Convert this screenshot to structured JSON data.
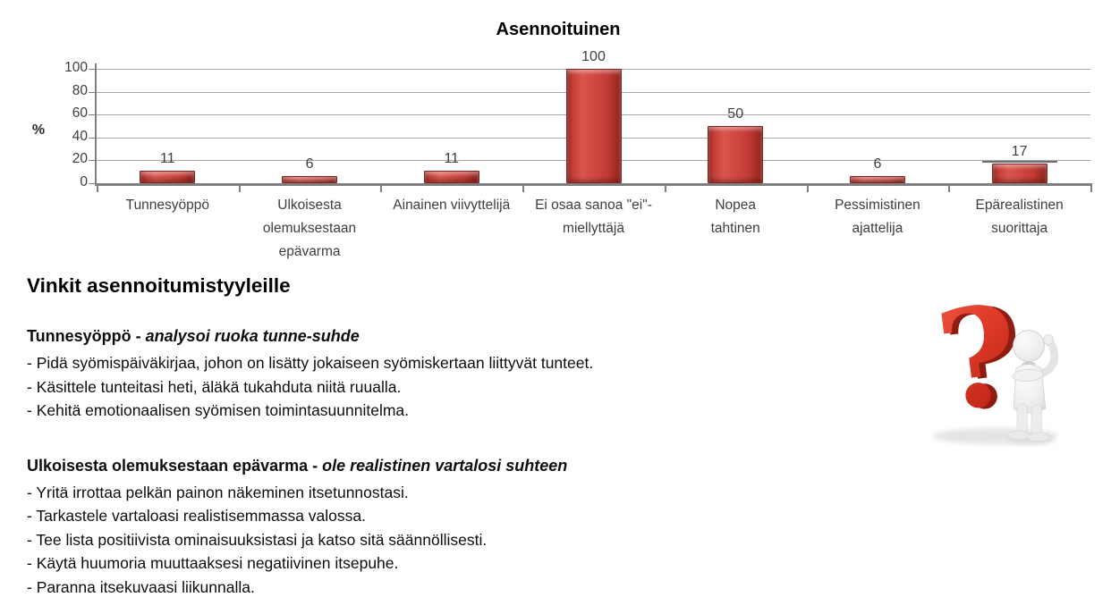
{
  "chart_data": {
    "type": "bar",
    "title": "Asennoituinen",
    "ylabel": "%",
    "xlabel": "",
    "ylim": [
      0,
      100
    ],
    "yticks": [
      0,
      20,
      40,
      60,
      80,
      100
    ],
    "grid": true,
    "legend": "none",
    "bar_color": "#cc4440",
    "bar_edge_color": "#8a211c",
    "gridline_color": "#a8a8a8",
    "axis_color": "#7f7f7f",
    "label_color": "#3d3d42",
    "categories": [
      "Tunnesyöppö",
      "Ulkoisesta olemuksestaan epävarma",
      "Ainainen viivyttelijä",
      "Ei osaa sanoa \"ei\"-miellyttäjä",
      "Nopea tahtinen",
      "Pessimistinen ajattelija",
      "Epärealistinen suorittaja"
    ],
    "category_lines": [
      [
        "Tunnesyöppö"
      ],
      [
        "Ulkoisesta",
        "olemuksestaan",
        "epävarma"
      ],
      [
        "Ainainen viivyttelijä"
      ],
      [
        "Ei osaa sanoa \"ei\"-",
        "miellyttäjä"
      ],
      [
        "Nopea",
        "tahtinen"
      ],
      [
        "Pessimistinen",
        "ajattelija"
      ],
      [
        "Epärealistinen",
        "suorittaja"
      ]
    ],
    "values": [
      11,
      6,
      11,
      100,
      50,
      6,
      17
    ],
    "data_labels": [
      "11",
      "6",
      "11",
      "100",
      "50",
      "6",
      "17"
    ],
    "annotations": [
      {
        "type": "dark-gridline-segment",
        "category_index": 6,
        "value": 20
      }
    ]
  },
  "tips": {
    "heading": "Vinkit asennoitumistyyleille",
    "sections": [
      {
        "title_bold": "Tunnesyöppö - ",
        "title_italic": "analysoi ruoka tunne-suhde",
        "bullets": [
          "- Pidä syömispäiväkirjaa, johon on lisätty jokaiseen syömiskertaan liittyvät tunteet.",
          "- Käsittele tunteitasi heti, äläkä tukahduta niitä ruualla.",
          "- Kehitä emotionaalisen syömisen toimintasuunnitelma."
        ]
      },
      {
        "title_bold": "Ulkoisesta olemuksestaan epävarma - ",
        "title_italic": "ole realistinen vartalosi suhteen",
        "bullets": [
          "- Yritä irrottaa pelkän painon näkeminen itsetunnostasi.",
          "- Tarkastele vartaloasi realistisemmassa valossa.",
          "- Tee lista positiivista ominaisuuksistasi ja katso sitä säännöllisesti.",
          "- Käytä huumoria muuttaaksesi negatiivinen itsepuhe.",
          "- Paranna itsekuvaasi liikunnalla."
        ]
      }
    ]
  },
  "illustration": {
    "name": "red-question-mark-with-thinking-figure",
    "colors": {
      "question_red_light": "#f05843",
      "question_red_dark": "#c02415",
      "question_depth": "#8f1c10",
      "figure_light": "#f4f4f4",
      "figure_shade": "#d2d2d2",
      "shadow": "#e2e2e2"
    }
  }
}
